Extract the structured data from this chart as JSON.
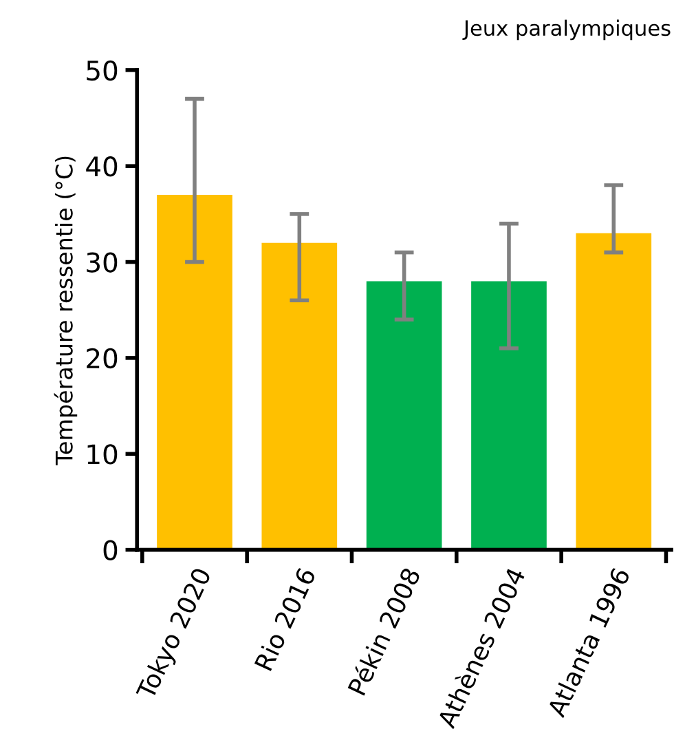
{
  "chart_data": {
    "type": "bar",
    "title": "Jeux paralympiques",
    "ylabel": "Température ressentie (°C)",
    "categories": [
      "Tokyo 2020",
      "Rio 2016",
      "Pékin 2008",
      "Athènes 2004",
      "Atlanta 1996"
    ],
    "values": [
      37,
      32,
      28,
      28,
      33
    ],
    "colors": [
      "#ffc000",
      "#ffc000",
      "#00b050",
      "#00b050",
      "#ffc000"
    ],
    "errors": [
      [
        30,
        47
      ],
      [
        26,
        35
      ],
      [
        24,
        31
      ],
      [
        21,
        34
      ],
      [
        31,
        38
      ]
    ],
    "ylim": [
      0,
      50
    ],
    "yticks": [
      0,
      10,
      20,
      30,
      40,
      50
    ],
    "grid": false
  }
}
